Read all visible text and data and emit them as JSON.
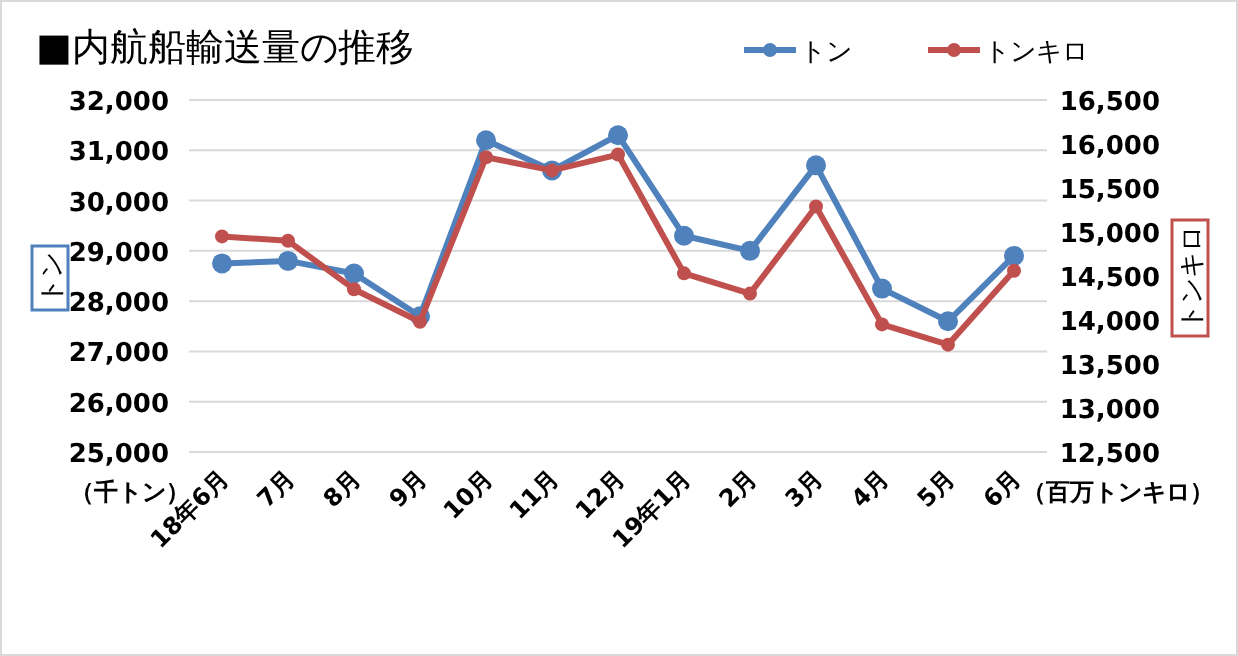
{
  "chart_data": {
    "type": "line",
    "title": "■内航船輸送量の推移",
    "ylabel": "トン",
    "y2label": "トンキロ",
    "annotations": [
      "（千トン）",
      "（百万トンキロ）"
    ],
    "categories": [
      "18年6月",
      "7月",
      "8月",
      "9月",
      "10月",
      "11月",
      "12月",
      "19年1月",
      "2月",
      "3月",
      "4月",
      "5月",
      "6月"
    ],
    "series": [
      {
        "name": "トン",
        "color": "#4f81bd",
        "values": [
          28750,
          28800,
          28550,
          27700,
          31200,
          30600,
          31300,
          29300,
          29000,
          30700,
          28250,
          27600,
          28900
        ]
      },
      {
        "name": "トンキロ",
        "color": "#c0504d",
        "axis": "y2",
        "values": [
          14950,
          14900,
          14350,
          13980,
          15850,
          15700,
          15880,
          14530,
          14300,
          15290,
          13950,
          13720,
          14560
        ]
      }
    ],
    "ylim": [
      25000,
      32000
    ],
    "yticks": [
      {
        "value": 25000,
        "label": "25,000"
      },
      {
        "value": 26000,
        "label": "26,000"
      },
      {
        "value": 27000,
        "label": "27,000"
      },
      {
        "value": 28000,
        "label": "28,000"
      },
      {
        "value": 29000,
        "label": "29,000"
      },
      {
        "value": 30000,
        "label": "30,000"
      },
      {
        "value": 31000,
        "label": "31,000"
      },
      {
        "value": 32000,
        "label": "32,000"
      }
    ],
    "y2lim": [
      12500,
      16500
    ],
    "y2ticks": [
      {
        "value": 12500,
        "label": "12,500"
      },
      {
        "value": 13000,
        "label": "13,000"
      },
      {
        "value": 13500,
        "label": "13,500"
      },
      {
        "value": 14000,
        "label": "14,000"
      },
      {
        "value": 14500,
        "label": "14,500"
      },
      {
        "value": 15000,
        "label": "15,000"
      },
      {
        "value": 15500,
        "label": "15,500"
      },
      {
        "value": 16000,
        "label": "16,000"
      },
      {
        "value": 16500,
        "label": "16,500"
      }
    ],
    "grid": "y",
    "legend": "top right",
    "marker": "circle",
    "line_style": "solid"
  }
}
